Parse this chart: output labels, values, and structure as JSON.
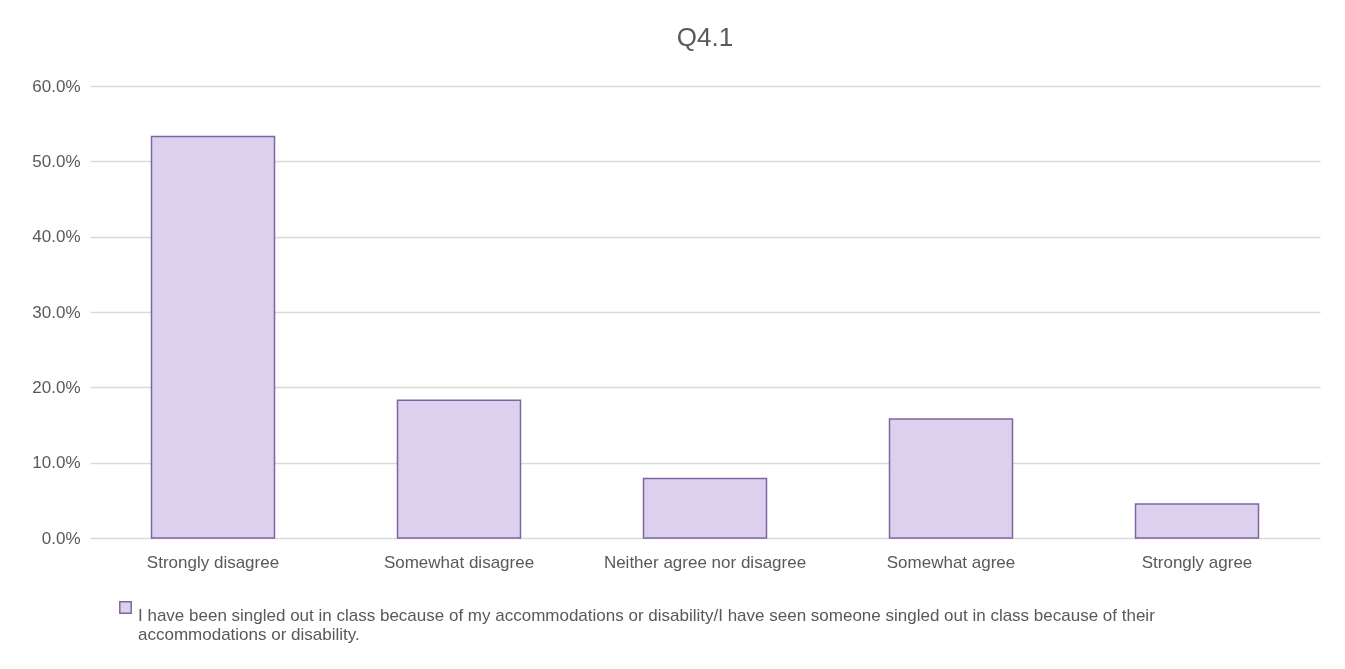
{
  "chart_data": {
    "type": "bar",
    "title": "Q4.1",
    "categories": [
      "Strongly disagree",
      "Somewhat disagree",
      "Neither agree nor disagree",
      "Somewhat agree",
      "Strongly agree"
    ],
    "series": [
      {
        "name": "I have been singled out in class because of my accommodations or disability/I have seen someone singled out in class because of their accommodations or disability.",
        "color": "#dcd0ef",
        "values": [
          53.3,
          18.3,
          7.9,
          15.8,
          4.5
        ]
      }
    ],
    "ylim": [
      0,
      60
    ],
    "yticks": [
      {
        "value": 0,
        "label": "0.0%"
      },
      {
        "value": 10,
        "label": "10.0%"
      },
      {
        "value": 20,
        "label": "20.0%"
      },
      {
        "value": 30,
        "label": "30.0%"
      },
      {
        "value": 40,
        "label": "40.0%"
      },
      {
        "value": 50,
        "label": "50.0%"
      },
      {
        "value": 60,
        "label": "60.0%"
      }
    ],
    "grid": "y",
    "legend": "bottom"
  }
}
